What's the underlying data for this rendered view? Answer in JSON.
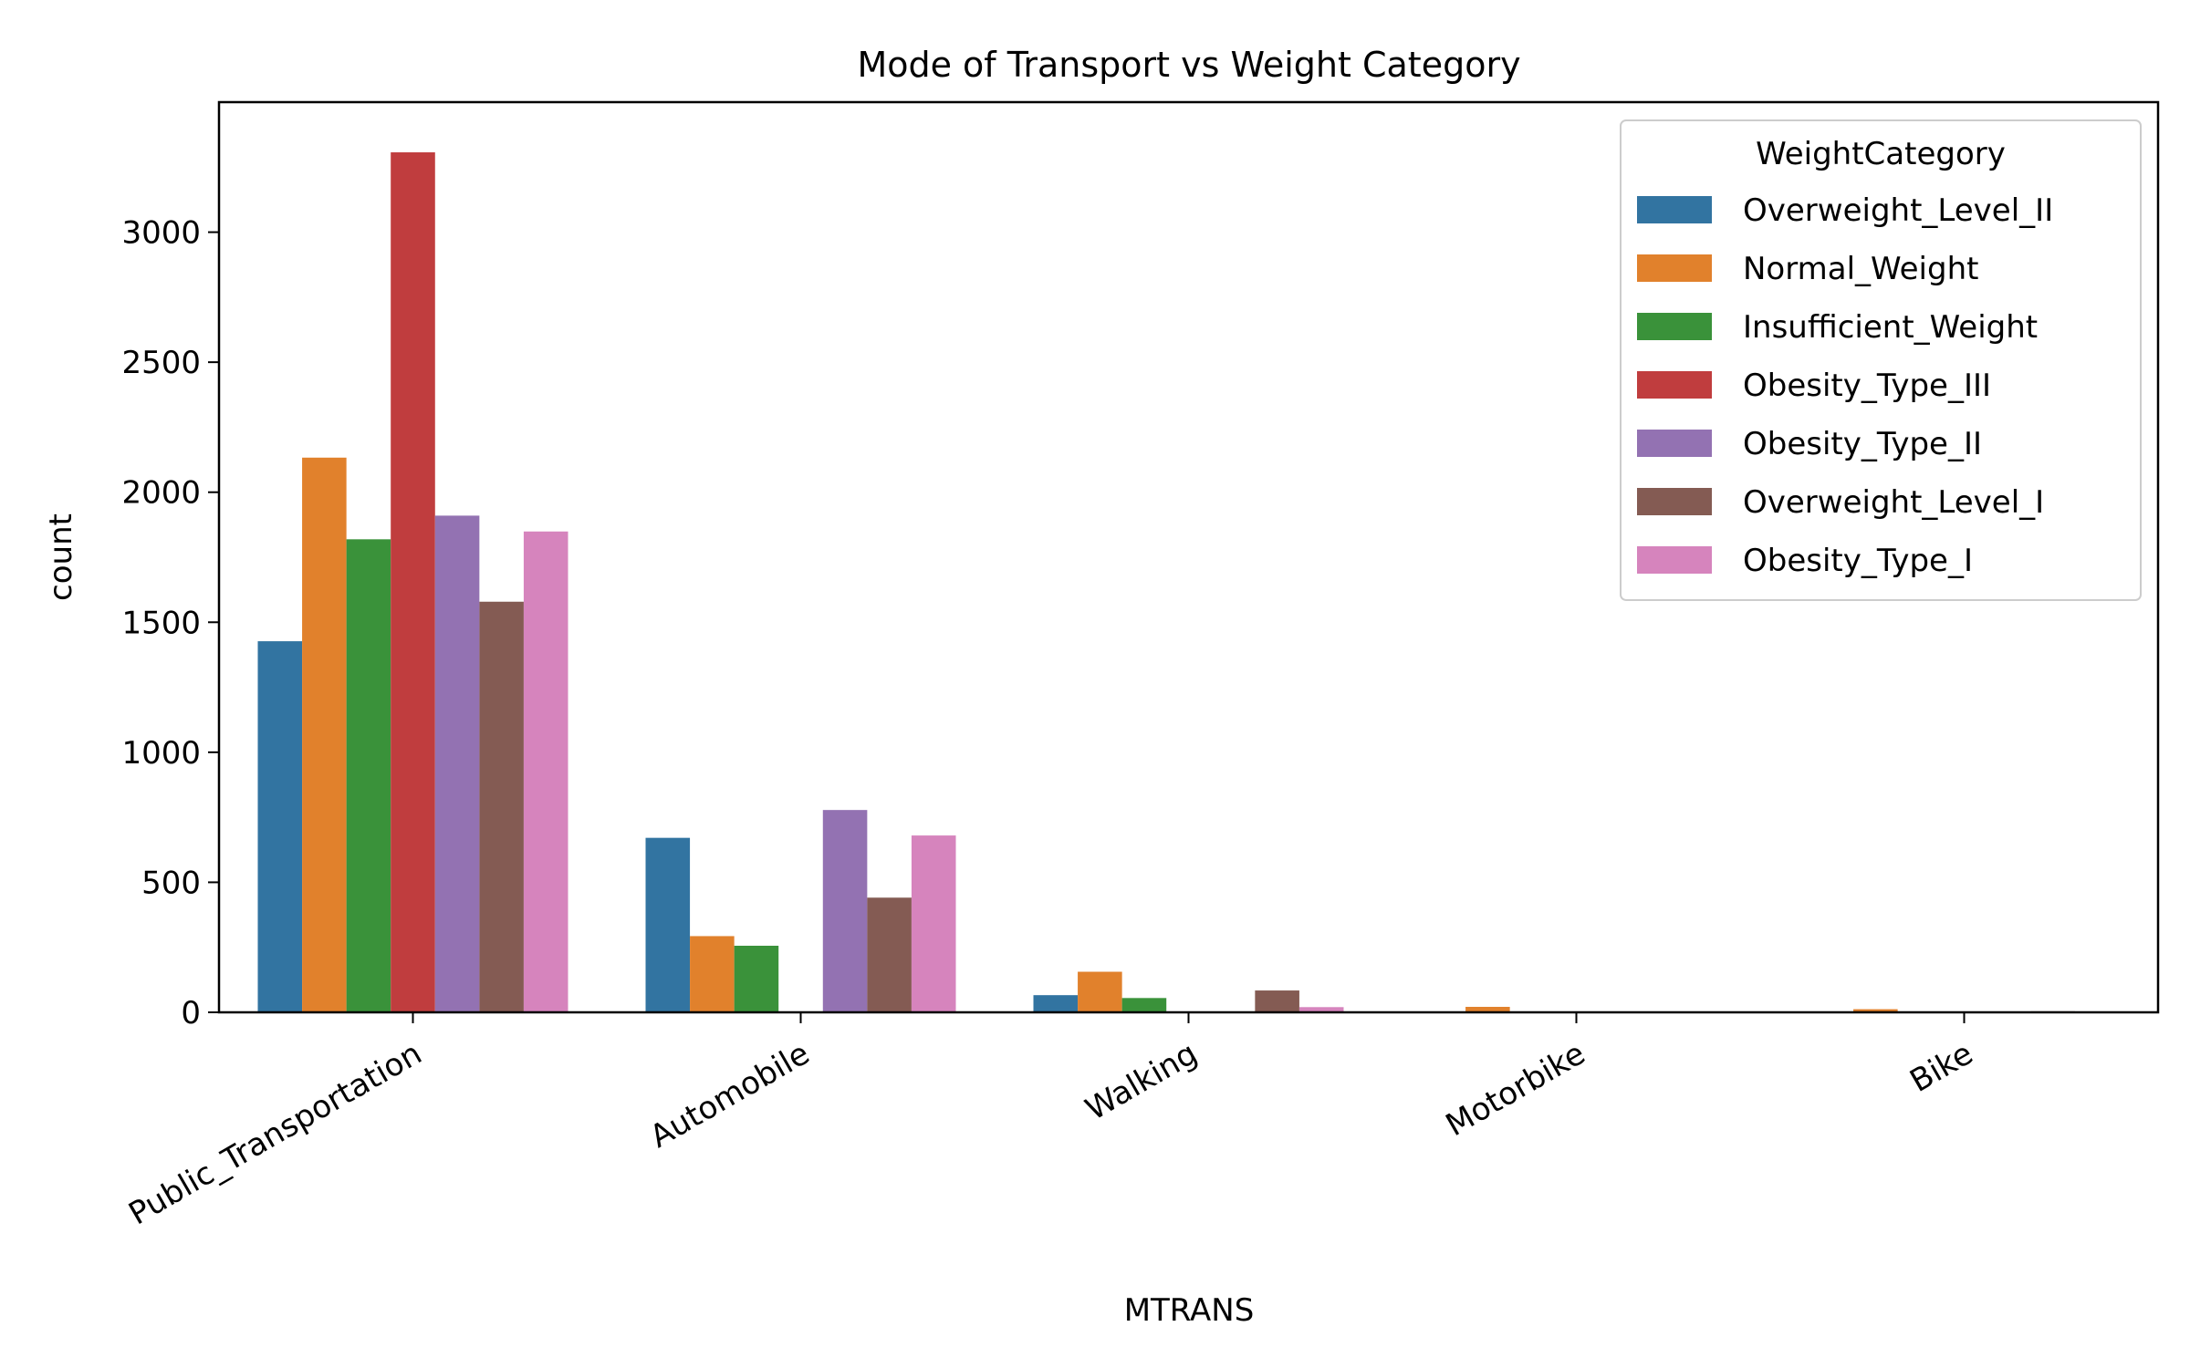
{
  "chart_data": {
    "type": "bar",
    "title": "Mode of Transport vs Weight Category",
    "xlabel": "MTRANS",
    "ylabel": "count",
    "ylim": [
      0,
      3500
    ],
    "yticks": [
      0,
      500,
      1000,
      1500,
      2000,
      2500,
      3000
    ],
    "grid": false,
    "legend": {
      "title": "WeightCategory",
      "placement": "top-right"
    },
    "categories": [
      "Public_Transportation",
      "Automobile",
      "Walking",
      "Motorbike",
      "Bike"
    ],
    "series": [
      {
        "name": "Overweight_Level_II",
        "color": "#3274a1",
        "values": [
          1427,
          671,
          66,
          0,
          0
        ]
      },
      {
        "name": "Normal_Weight",
        "color": "#e1812c",
        "values": [
          2133,
          293,
          156,
          21,
          12
        ]
      },
      {
        "name": "Insufficient_Weight",
        "color": "#3a923a",
        "values": [
          1819,
          256,
          55,
          0,
          0
        ]
      },
      {
        "name": "Obesity_Type_III",
        "color": "#c03d3e",
        "values": [
          3307,
          0,
          0,
          0,
          0
        ]
      },
      {
        "name": "Obesity_Type_II",
        "color": "#9372b2",
        "values": [
          1910,
          778,
          0,
          0,
          0
        ]
      },
      {
        "name": "Overweight_Level_I",
        "color": "#845b53",
        "values": [
          1579,
          441,
          84,
          0,
          4
        ]
      },
      {
        "name": "Obesity_Type_I",
        "color": "#d684bd",
        "values": [
          1849,
          680,
          20,
          0,
          0
        ]
      }
    ]
  }
}
